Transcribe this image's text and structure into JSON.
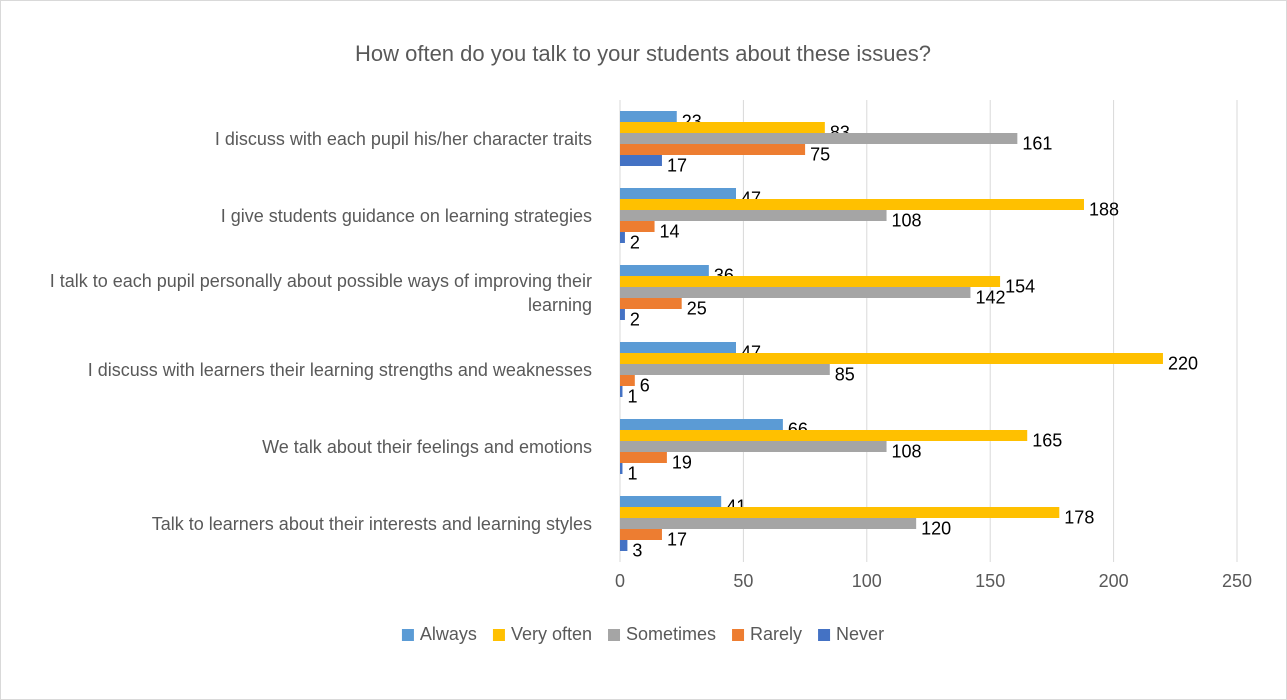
{
  "chart_data": {
    "type": "bar",
    "orientation": "horizontal",
    "title": "How often do you talk to your students about these issues?",
    "categories": [
      "I discuss with each pupil his/her character traits",
      "I give students guidance on learning strategies",
      "I talk to each pupil personally about possible ways of improving their learning",
      "I discuss with learners their learning strengths and weaknesses",
      "We talk about their feelings and emotions",
      "Talk to learners about their interests and learning styles"
    ],
    "series": [
      {
        "name": "Always",
        "color": "#5b9bd5",
        "values": [
          23,
          47,
          36,
          47,
          66,
          41
        ]
      },
      {
        "name": "Very often",
        "color": "#ffc000",
        "values": [
          83,
          188,
          154,
          220,
          165,
          178
        ]
      },
      {
        "name": "Sometimes",
        "color": "#a5a5a5",
        "values": [
          161,
          108,
          142,
          85,
          108,
          120
        ]
      },
      {
        "name": "Rarely",
        "color": "#ed7d31",
        "values": [
          75,
          14,
          25,
          6,
          19,
          17
        ]
      },
      {
        "name": "Never",
        "color": "#4472c4",
        "values": [
          17,
          2,
          2,
          1,
          1,
          3
        ]
      }
    ],
    "xlim": [
      0,
      250
    ],
    "xticks": [
      0,
      50,
      100,
      150,
      200,
      250
    ],
    "grid": true,
    "legend": "bottom"
  }
}
